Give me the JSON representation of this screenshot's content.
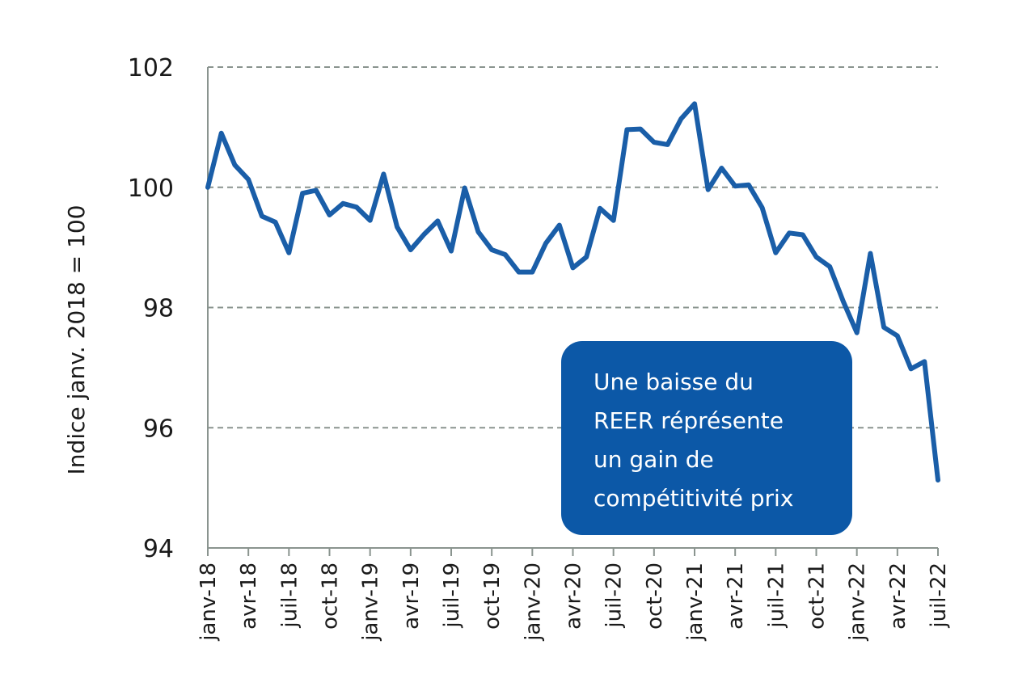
{
  "chart_data": {
    "type": "line",
    "title": "",
    "xlabel": "",
    "ylabel": "Indice janv. 2018 = 100",
    "ylim": [
      94,
      102
    ],
    "yticks": [
      94,
      96,
      98,
      100,
      102
    ],
    "grid": true,
    "x_tick_labels": [
      "janv-18",
      "avr-18",
      "juil-18",
      "oct-18",
      "janv-19",
      "avr-19",
      "juil-19",
      "oct-19",
      "janv-20",
      "avr-20",
      "juil-20",
      "oct-20",
      "janv-21",
      "avr-21",
      "juil-21",
      "oct-21",
      "janv-22",
      "avr-22",
      "juil-22"
    ],
    "x": [
      "janv-18",
      "févr-18",
      "mars-18",
      "avr-18",
      "mai-18",
      "juin-18",
      "juil-18",
      "août-18",
      "sept-18",
      "oct-18",
      "nov-18",
      "déc-18",
      "janv-19",
      "févr-19",
      "mars-19",
      "avr-19",
      "mai-19",
      "juin-19",
      "juil-19",
      "août-19",
      "sept-19",
      "oct-19",
      "nov-19",
      "déc-19",
      "janv-20",
      "févr-20",
      "mars-20",
      "avr-20",
      "mai-20",
      "juin-20",
      "juil-20",
      "août-20",
      "sept-20",
      "oct-20",
      "nov-20",
      "déc-20",
      "janv-21",
      "févr-21",
      "mars-21",
      "avr-21",
      "mai-21",
      "juin-21",
      "juil-21",
      "août-21",
      "sept-21",
      "oct-21",
      "nov-21",
      "déc-21",
      "janv-22",
      "févr-22",
      "mars-22",
      "avr-22",
      "mai-22",
      "juin-22",
      "juil-22"
    ],
    "series": [
      {
        "color": "#1a5ea8",
        "values": [
          100.0,
          100.9,
          100.37,
          100.13,
          99.52,
          99.42,
          98.91,
          99.9,
          99.95,
          99.54,
          99.73,
          99.67,
          99.45,
          100.22,
          99.34,
          98.96,
          99.22,
          99.44,
          98.94,
          99.99,
          99.26,
          98.96,
          98.88,
          98.59,
          98.59,
          99.07,
          99.37,
          98.66,
          98.84,
          99.65,
          99.45,
          100.96,
          100.97,
          100.75,
          100.71,
          101.14,
          101.39,
          99.96,
          100.32,
          100.02,
          100.04,
          99.66,
          98.91,
          99.24,
          99.21,
          98.84,
          98.68,
          98.1,
          97.58,
          98.9,
          97.67,
          97.53,
          96.98,
          97.1,
          95.13
        ]
      }
    ],
    "annotation": {
      "lines": [
        "Une baisse du",
        "REER réprésente",
        "un gain de",
        "compétitivité prix"
      ],
      "background": "#0c58a7",
      "text_color": "#ffffff"
    }
  }
}
